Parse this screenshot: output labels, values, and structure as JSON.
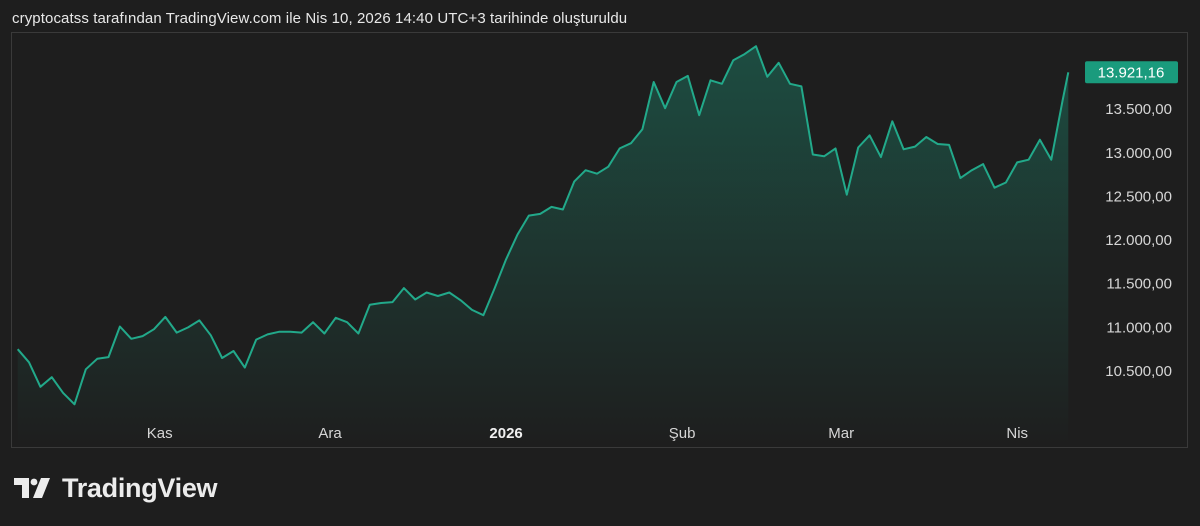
{
  "header": {
    "attribution": "cryptocatss tarafından TradingView.com ile Nis 10, 2026 14:40 UTC+3 tarihinde oluşturuldu"
  },
  "logo": {
    "text": "TradingView",
    "icon": "tradingview-logo-icon"
  },
  "colors": {
    "line": "#22a98a",
    "area_top": "#1d4f43",
    "area_bottom": "#1e1e1e",
    "price_tag": "#1a9b7d",
    "background": "#1e1e1e"
  },
  "chart_data": {
    "type": "area",
    "grid": false,
    "ylim": [
      10100,
      14360
    ],
    "y_ticks": [
      "10.500,00",
      "11.000,00",
      "11.500,00",
      "12.000,00",
      "12.500,00",
      "13.000,00",
      "13.500,00",
      "13.921,16"
    ],
    "y_tick_values": [
      10500,
      11000,
      11500,
      12000,
      12500,
      13000,
      13500,
      13921.16
    ],
    "x_ticks": [
      {
        "label": "Kas",
        "date": "2025-11-01",
        "bold": false
      },
      {
        "label": "Ara",
        "date": "2025-12-01",
        "bold": false
      },
      {
        "label": "2026",
        "date": "2026-01-01",
        "bold": true
      },
      {
        "label": "Şub",
        "date": "2026-02-01",
        "bold": false
      },
      {
        "label": "Mar",
        "date": "2026-03-01",
        "bold": false
      },
      {
        "label": "Nis",
        "date": "2026-04-01",
        "bold": false
      }
    ],
    "last_price_label": "13.921,16",
    "last_price": 13921.16,
    "series": [
      {
        "x": [
          "2025-10-07",
          "2025-10-09",
          "2025-10-11",
          "2025-10-13",
          "2025-10-15",
          "2025-10-17",
          "2025-10-19",
          "2025-10-21",
          "2025-10-23",
          "2025-10-25",
          "2025-10-27",
          "2025-10-29",
          "2025-10-31",
          "2025-11-02",
          "2025-11-04",
          "2025-11-06",
          "2025-11-08",
          "2025-11-10",
          "2025-11-12",
          "2025-11-14",
          "2025-11-16",
          "2025-11-18",
          "2025-11-20",
          "2025-11-22",
          "2025-11-24",
          "2025-11-26",
          "2025-11-28",
          "2025-11-30",
          "2025-12-02",
          "2025-12-04",
          "2025-12-06",
          "2025-12-08",
          "2025-12-10",
          "2025-12-12",
          "2025-12-14",
          "2025-12-16",
          "2025-12-18",
          "2025-12-20",
          "2025-12-22",
          "2025-12-24",
          "2025-12-26",
          "2025-12-28",
          "2025-12-30",
          "2026-01-01",
          "2026-01-03",
          "2026-01-05",
          "2026-01-07",
          "2026-01-09",
          "2026-01-11",
          "2026-01-13",
          "2026-01-15",
          "2026-01-17",
          "2026-01-19",
          "2026-01-21",
          "2026-01-23",
          "2026-01-25",
          "2026-01-27",
          "2026-01-29",
          "2026-01-31",
          "2026-02-02",
          "2026-02-04",
          "2026-02-06",
          "2026-02-08",
          "2026-02-10",
          "2026-02-12",
          "2026-02-14",
          "2026-02-16",
          "2026-02-18",
          "2026-02-20",
          "2026-02-22",
          "2026-02-24",
          "2026-02-26",
          "2026-02-28",
          "2026-03-02",
          "2026-03-04",
          "2026-03-06",
          "2026-03-08",
          "2026-03-10",
          "2026-03-12",
          "2026-03-14",
          "2026-03-16",
          "2026-03-18",
          "2026-03-20",
          "2026-03-22",
          "2026-03-24",
          "2026-03-26",
          "2026-03-28",
          "2026-03-30",
          "2026-04-01",
          "2026-04-03",
          "2026-04-05",
          "2026-04-07",
          "2026-04-09",
          "2026-04-10"
        ],
        "y": [
          10750,
          10600,
          10320,
          10430,
          10250,
          10120,
          10520,
          10640,
          10660,
          11010,
          10870,
          10900,
          10980,
          11120,
          10940,
          11000,
          11080,
          10910,
          10650,
          10730,
          10540,
          10860,
          10920,
          10950,
          10950,
          10940,
          11060,
          10930,
          11110,
          11060,
          10930,
          11260,
          11280,
          11290,
          11450,
          11320,
          11400,
          11360,
          11400,
          11310,
          11200,
          11140,
          11450,
          11780,
          12060,
          12280,
          12300,
          12380,
          12350,
          12670,
          12800,
          12760,
          12840,
          13050,
          13110,
          13270,
          13810,
          13510,
          13810,
          13880,
          13430,
          13830,
          13790,
          14060,
          14130,
          14220,
          13870,
          14030,
          13790,
          13760,
          12980,
          12960,
          13050,
          12520,
          13060,
          13200,
          12950,
          13360,
          13040,
          13070,
          13180,
          13100,
          13090,
          12710,
          12800,
          12870,
          12600,
          12660,
          12890,
          12920,
          13150,
          12920,
          13600,
          13921
        ]
      }
    ]
  }
}
